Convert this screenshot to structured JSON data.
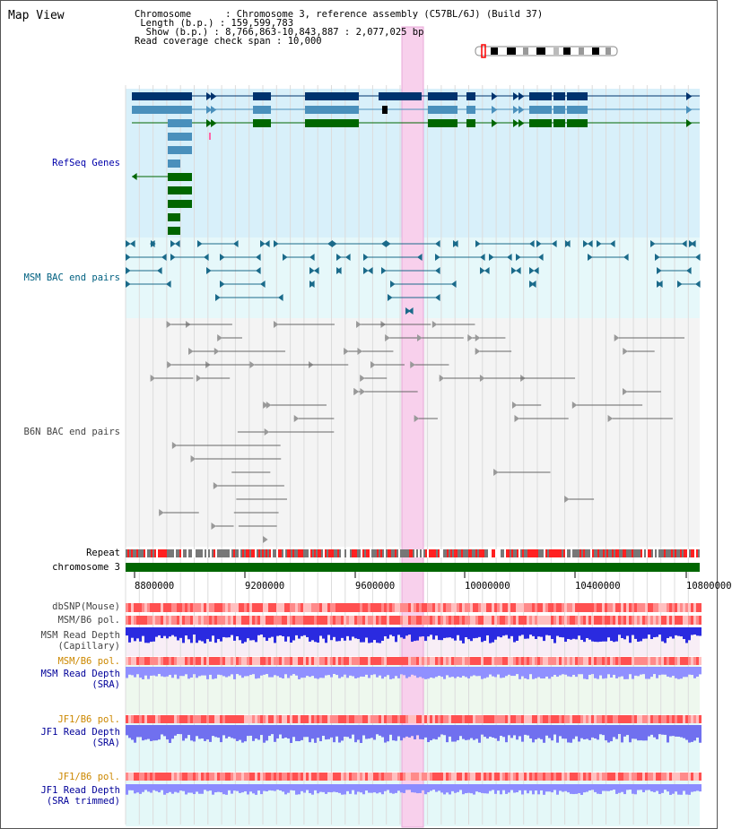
{
  "title": "Map View",
  "info": {
    "chromosome_key": "Chromosome",
    "chromosome_val": "Chromosome 3, reference assembly (C57BL/6J) (Build 37)",
    "length_key": "Length (b.p.)",
    "length_val": "159,599,783",
    "show_key": "Show (b.p.)",
    "show_val": "8,766,863-10,843,887 : 2,077,025 bp",
    "coverage_key": "Read coverage check span",
    "coverage_val": "10,000"
  },
  "tracks": {
    "refseq": "RefSeq Genes",
    "msm_bac": "MSM BAC end pairs",
    "b6n_bac": "B6N BAC end pairs",
    "repeat": "Repeat",
    "chromosome": "chromosome 3",
    "dbsnp": "dbSNP(Mouse)",
    "msm_b6_pol": "MSM/B6 pol.",
    "msm_read_depth_cap_1": "MSM Read Depth",
    "msm_read_depth_cap_2": "(Capillary)",
    "msm_b6_pol_2": "MSM/B6 pol.",
    "msm_read_depth_sra_1": "MSM Read Depth",
    "msm_read_depth_sra_2": "(SRA)",
    "jf1_b6_pol": "JF1/B6 pol.",
    "jf1_read_depth_sra_1": "JF1 Read Depth",
    "jf1_read_depth_sra_2": "(SRA)",
    "jf1_b6_pol_2": "JF1/B6 pol.",
    "jf1_read_depth_trim_1": "JF1 Read Depth",
    "jf1_read_depth_trim_2": "(SRA trimmed)"
  },
  "axis_ticks": [
    "8800000",
    "9200000",
    "9600000",
    "10000000",
    "10400000",
    "10800000"
  ],
  "colors": {
    "refseq_bg": "#d8f0fa",
    "msm_bg": "#e6f8fa",
    "b6n_bg": "#f4f4f4",
    "highlight": "#f8d0ec",
    "chromosome": "#006600",
    "gene_dark": "#00336e",
    "gene_mid": "#4a90bc",
    "gene_green": "#006600"
  }
}
